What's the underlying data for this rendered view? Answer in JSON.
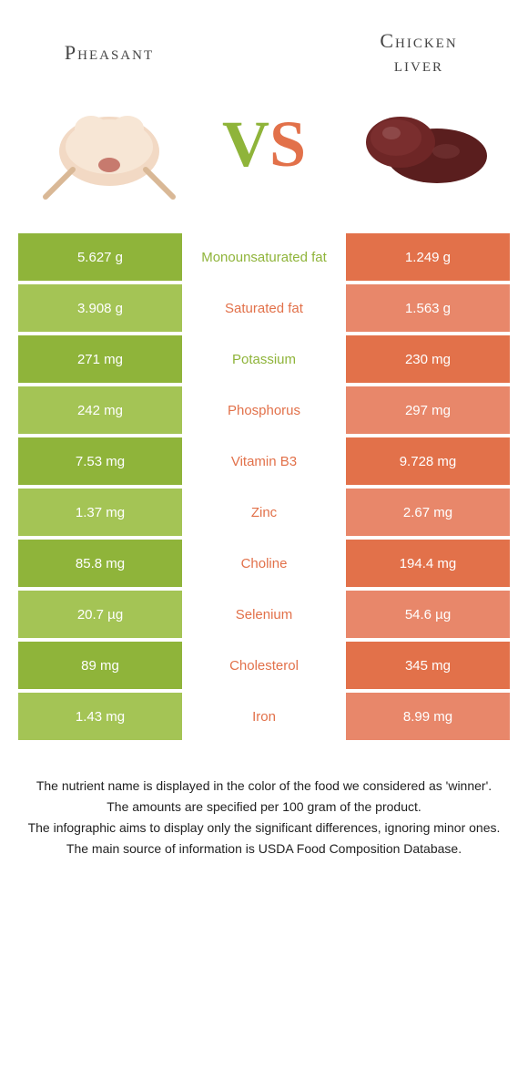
{
  "header": {
    "food_a": {
      "title": "Pheasant",
      "color": "#8fb43a"
    },
    "food_b": {
      "title": "Chicken\nliver",
      "color": "#e2714a"
    },
    "vs_v": "V",
    "vs_s": "S"
  },
  "colors": {
    "green": "#8fb43a",
    "green_alt": "#a4c455",
    "orange": "#e2714a",
    "orange_alt": "#e8876a",
    "text": "#333333",
    "bg": "#ffffff"
  },
  "rows": [
    {
      "left": "5.627 g",
      "label": "Monounsaturated fat",
      "right": "1.249 g",
      "winner": "green"
    },
    {
      "left": "3.908 g",
      "label": "Saturated fat",
      "right": "1.563 g",
      "winner": "orange"
    },
    {
      "left": "271 mg",
      "label": "Potassium",
      "right": "230 mg",
      "winner": "green"
    },
    {
      "left": "242 mg",
      "label": "Phosphorus",
      "right": "297 mg",
      "winner": "orange"
    },
    {
      "left": "7.53 mg",
      "label": "Vitamin B3",
      "right": "9.728 mg",
      "winner": "orange"
    },
    {
      "left": "1.37 mg",
      "label": "Zinc",
      "right": "2.67 mg",
      "winner": "orange"
    },
    {
      "left": "85.8 mg",
      "label": "Choline",
      "right": "194.4 mg",
      "winner": "orange"
    },
    {
      "left": "20.7 µg",
      "label": "Selenium",
      "right": "54.6 µg",
      "winner": "orange"
    },
    {
      "left": "89 mg",
      "label": "Cholesterol",
      "right": "345 mg",
      "winner": "orange"
    },
    {
      "left": "1.43 mg",
      "label": "Iron",
      "right": "8.99 mg",
      "winner": "orange"
    }
  ],
  "footnotes": [
    "The nutrient name is displayed in the color of the food we considered as 'winner'.",
    "The amounts are specified per 100 gram of the product.",
    "The infographic aims to display only the significant differences, ignoring minor ones.",
    "The main source of information is USDA Food Composition Database."
  ]
}
